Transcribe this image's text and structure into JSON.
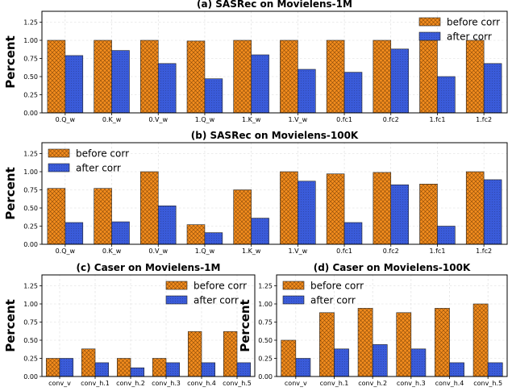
{
  "colors": {
    "before": "#F28C1E",
    "after": "#3A5BD9"
  },
  "chart_data": [
    {
      "type": "bar",
      "title": "(a) SASRec on Movielens-1M",
      "ylabel": "Percent",
      "ylim": [
        0,
        1.4
      ],
      "yticks": [
        "0.00",
        "0.25",
        "0.50",
        "0.75",
        "1.00",
        "1.25"
      ],
      "categories": [
        "0.Q_w",
        "0.K_w",
        "0.V_w",
        "1.Q_w",
        "1.K_w",
        "1.V_w",
        "0.fc1",
        "0.fc2",
        "1.fc1",
        "1.fc2"
      ],
      "series": [
        {
          "name": "before corr",
          "values": [
            1.0,
            1.0,
            1.0,
            0.99,
            1.0,
            1.0,
            1.0,
            1.0,
            1.0,
            1.0
          ]
        },
        {
          "name": "after corr",
          "values": [
            0.79,
            0.86,
            0.68,
            0.47,
            0.8,
            0.6,
            0.56,
            0.88,
            0.5,
            0.68
          ]
        }
      ],
      "legend": "top-right"
    },
    {
      "type": "bar",
      "title": "(b) SASRec on Movielens-100K",
      "ylabel": "Percent",
      "ylim": [
        0,
        1.4
      ],
      "yticks": [
        "0.00",
        "0.25",
        "0.50",
        "0.75",
        "1.00",
        "1.25"
      ],
      "categories": [
        "0.Q_w",
        "0.K_w",
        "0.V_w",
        "1.Q_w",
        "1.K_w",
        "1.V_w",
        "0.fc1",
        "0.fc2",
        "1.fc1",
        "1.fc2"
      ],
      "series": [
        {
          "name": "before corr",
          "values": [
            0.77,
            0.77,
            1.0,
            0.27,
            0.75,
            1.0,
            0.97,
            0.99,
            0.83,
            1.0
          ]
        },
        {
          "name": "after corr",
          "values": [
            0.3,
            0.31,
            0.53,
            0.16,
            0.36,
            0.87,
            0.3,
            0.82,
            0.25,
            0.89
          ]
        }
      ],
      "legend": "top-left"
    },
    {
      "type": "bar",
      "title": "(c) Caser on Movielens-1M",
      "ylabel": "Percent",
      "ylim": [
        0,
        1.4
      ],
      "yticks": [
        "0.00",
        "0.25",
        "0.50",
        "0.75",
        "1.00",
        "1.25"
      ],
      "categories": [
        "conv_v",
        "conv_h.1",
        "conv_h.2",
        "conv_h.3",
        "conv_h.4",
        "conv_h.5"
      ],
      "series": [
        {
          "name": "before corr",
          "values": [
            0.25,
            0.38,
            0.25,
            0.25,
            0.62,
            0.62
          ]
        },
        {
          "name": "after corr",
          "values": [
            0.25,
            0.19,
            0.12,
            0.19,
            0.19,
            0.19
          ]
        }
      ],
      "legend": "top-right"
    },
    {
      "type": "bar",
      "title": "(d) Caser on Movielens-100K",
      "ylabel": "Percent",
      "ylim": [
        0,
        1.4
      ],
      "yticks": [
        "0.00",
        "0.25",
        "0.50",
        "0.75",
        "1.00",
        "1.25"
      ],
      "categories": [
        "conv_v",
        "conv_h.1",
        "conv_h.2",
        "conv_h.3",
        "conv_h.4",
        "conv_h.5"
      ],
      "series": [
        {
          "name": "before corr",
          "values": [
            0.5,
            0.88,
            0.94,
            0.88,
            0.94,
            1.0
          ]
        },
        {
          "name": "after corr",
          "values": [
            0.25,
            0.38,
            0.44,
            0.38,
            0.19,
            0.19
          ]
        }
      ],
      "legend": "top-left"
    }
  ]
}
